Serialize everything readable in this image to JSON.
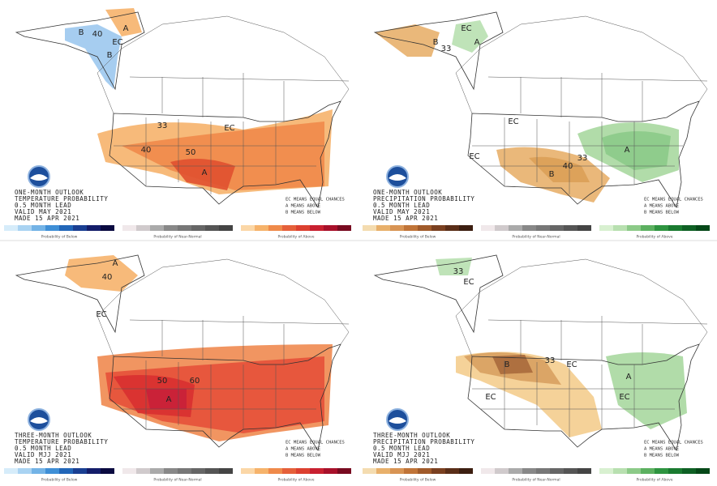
{
  "panels": [
    {
      "title_lines": [
        "ONE-MONTH OUTLOOK",
        "TEMPERATURE PROBABILITY",
        "0.5 MONTH LEAD",
        "VALID MAY 2021",
        "MADE 15 APR 2021"
      ],
      "legend_lines": [
        "EC MEANS EQUAL CHANCES",
        "A MEANS ABOVE",
        "B MEANS BELOW"
      ],
      "map_labels": [
        "B",
        "40",
        "A",
        "EC",
        "B",
        "EC",
        "40",
        "50",
        "A",
        "33"
      ],
      "colorbar_captions": [
        "Probability of Below",
        "Probability of Near-Normal",
        "Probability of Above"
      ]
    },
    {
      "title_lines": [
        "ONE-MONTH OUTLOOK",
        "PRECIPITATION PROBABILITY",
        "0.5 MONTH LEAD",
        "VALID MAY 2021",
        "MADE 15 APR 2021"
      ],
      "legend_lines": [
        "EC MEANS EQUAL CHANCES",
        "A MEANS ABOVE",
        "B MEANS BELOW"
      ],
      "map_labels": [
        "B",
        "EC",
        "A",
        "33",
        "EC",
        "EC",
        "B",
        "40",
        "A",
        "33"
      ],
      "colorbar_captions": [
        "Probability of Below",
        "Probability of Near-Normal",
        "Probability of Above"
      ]
    },
    {
      "title_lines": [
        "THREE-MONTH OUTLOOK",
        "TEMPERATURE PROBABILITY",
        "0.5 MONTH LEAD",
        "VALID MJJ 2021",
        "MADE 15 APR 2021"
      ],
      "legend_lines": [
        "EC MEANS EQUAL CHANCES",
        "A MEANS ABOVE",
        "B MEANS BELOW"
      ],
      "map_labels": [
        "A",
        "40",
        "EC",
        "A",
        "50",
        "60"
      ],
      "colorbar_captions": [
        "Probability of Below",
        "Probability of Near-Normal",
        "Probability of Above"
      ]
    },
    {
      "title_lines": [
        "THREE-MONTH OUTLOOK",
        "PRECIPITATION PROBABILITY",
        "0.5 MONTH LEAD",
        "VALID MJJ 2021",
        "MADE 15 APR 2021"
      ],
      "legend_lines": [
        "EC MEANS EQUAL CHANCES",
        "A MEANS ABOVE",
        "B MEANS BELOW"
      ],
      "map_labels": [
        "33",
        "EC",
        "B",
        "33",
        "EC",
        "EC",
        "A",
        "EC"
      ],
      "colorbar_captions": [
        "Probability of Below",
        "Probability of Near-Normal",
        "Probability of Above"
      ]
    }
  ]
}
